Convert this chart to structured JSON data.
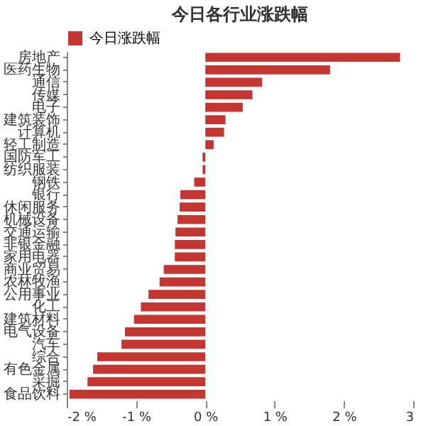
{
  "chart_data": {
    "type": "bar",
    "orientation": "horizontal",
    "title": "今日各行业涨跌幅",
    "categories": [
      "房地产",
      "医药生物",
      "通信",
      "传媒",
      "电子",
      "建筑装饰",
      "计算机",
      "轻工制造",
      "国防军工",
      "纺织服装",
      "钢铁",
      "银行",
      "休闲服务",
      "机械设备",
      "交通运输",
      "非银金融",
      "家用电器",
      "商业贸易",
      "农林牧渔",
      "公用事业",
      "化工",
      "建筑材料",
      "电气设备",
      "汽车",
      "综合",
      "有色金属",
      "采掘",
      "食品饮料"
    ],
    "series": [
      {
        "name": "今日涨跌幅",
        "color": "#c23531",
        "values": [
          2.81,
          1.8,
          0.82,
          0.68,
          0.54,
          0.29,
          0.27,
          0.12,
          -0.04,
          -0.04,
          -0.16,
          -0.36,
          -0.37,
          -0.4,
          -0.43,
          -0.44,
          -0.44,
          -0.6,
          -0.66,
          -0.82,
          -0.93,
          -1.03,
          -1.16,
          -1.21,
          -1.56,
          -1.62,
          -1.7,
          -1.96
        ]
      }
    ],
    "xlim": [
      -2,
      3
    ],
    "xticks": [
      {
        "value": -2,
        "label": "-2 %"
      },
      {
        "value": -1,
        "label": "-1 %"
      },
      {
        "value": 0,
        "label": "0 %"
      },
      {
        "value": 1,
        "label": "1 %"
      },
      {
        "value": 2,
        "label": "2 %"
      },
      {
        "value": 3,
        "label": "3"
      }
    ],
    "legend": "top",
    "grid": false
  }
}
